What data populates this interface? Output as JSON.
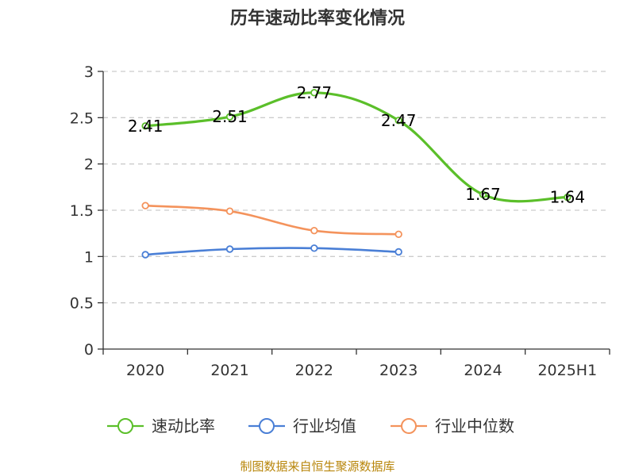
{
  "chart_data": {
    "type": "line",
    "title": "历年速动比率变化情况",
    "xlabel": "",
    "ylabel": "",
    "categories": [
      "2020",
      "2021",
      "2022",
      "2023",
      "2024",
      "2025H1"
    ],
    "ylim": [
      0,
      3
    ],
    "yticks": [
      "0",
      "0.5",
      "1",
      "1.5",
      "2",
      "2.5",
      "3"
    ],
    "grid": "horizontal dashed",
    "legend_position": "bottom",
    "series": [
      {
        "name": "速动比率",
        "color": "#5bbf2a",
        "values": [
          2.41,
          2.51,
          2.77,
          2.47,
          1.67,
          1.64
        ],
        "labels": [
          "2.41",
          "2.51",
          "2.77",
          "2.47",
          "1.67",
          "1.64"
        ]
      },
      {
        "name": "行业均值",
        "color": "#4a7fd6",
        "values": [
          1.02,
          1.08,
          1.09,
          1.05,
          null,
          null
        ]
      },
      {
        "name": "行业中位数",
        "color": "#f4935c",
        "values": [
          1.55,
          1.49,
          1.28,
          1.24,
          null,
          null
        ]
      }
    ]
  },
  "source": "制图数据来自恒生聚源数据库"
}
